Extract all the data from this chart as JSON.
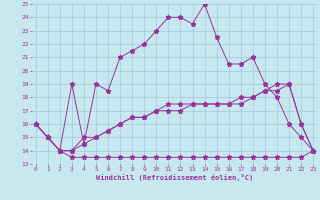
{
  "xlabel": "Windchill (Refroidissement éolien,°C)",
  "background_color": "#c8e8f0",
  "grid_color": "#a0c8d8",
  "line_color": "#993399",
  "xmin": 0,
  "xmax": 23,
  "ymin": 13,
  "ymax": 25,
  "series1_x": [
    0,
    1,
    2,
    3,
    4,
    5,
    6,
    7,
    8,
    9,
    10,
    11,
    12,
    13,
    14,
    15,
    16,
    17,
    18,
    19,
    20,
    21,
    22,
    23
  ],
  "series1_y": [
    16,
    15,
    14,
    19,
    14.5,
    19,
    18.5,
    21,
    21.5,
    22,
    23,
    24,
    24,
    23.5,
    25,
    22.5,
    20.5,
    20.5,
    21,
    19,
    18,
    16,
    15,
    14
  ],
  "series2_x": [
    0,
    1,
    2,
    3,
    4,
    5,
    6,
    7,
    8,
    9,
    10,
    11,
    12,
    13,
    14,
    15,
    16,
    17,
    18,
    19,
    20,
    21,
    22,
    23
  ],
  "series2_y": [
    16,
    15,
    14,
    13.5,
    13.5,
    13.5,
    13.5,
    13.5,
    13.5,
    13.5,
    13.5,
    13.5,
    13.5,
    13.5,
    13.5,
    13.5,
    13.5,
    13.5,
    13.5,
    13.5,
    13.5,
    13.5,
    13.5,
    14
  ],
  "series3_x": [
    0,
    1,
    2,
    3,
    4,
    5,
    6,
    7,
    8,
    9,
    10,
    11,
    12,
    13,
    14,
    15,
    16,
    17,
    18,
    19,
    20,
    21,
    22,
    23
  ],
  "series3_y": [
    16,
    15,
    14,
    14,
    14.5,
    15,
    15.5,
    16,
    16.5,
    16.5,
    17,
    17.5,
    17.5,
    17.5,
    17.5,
    17.5,
    17.5,
    18,
    18,
    18.5,
    18.5,
    19,
    16,
    14
  ],
  "series4_x": [
    0,
    1,
    2,
    3,
    4,
    5,
    6,
    7,
    8,
    9,
    10,
    11,
    12,
    13,
    14,
    15,
    16,
    17,
    18,
    19,
    20,
    21,
    22,
    23
  ],
  "series4_y": [
    16,
    15,
    14,
    14,
    15,
    15,
    15.5,
    16,
    16.5,
    16.5,
    17,
    17,
    17,
    17.5,
    17.5,
    17.5,
    17.5,
    17.5,
    18,
    18.5,
    19,
    19,
    16,
    14
  ]
}
